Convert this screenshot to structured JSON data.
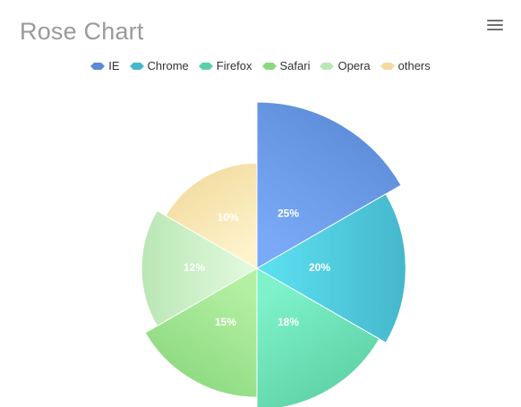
{
  "title": "Rose Chart",
  "toolbar": {
    "menu_icon": "hamburger-menu-icon"
  },
  "chart_data": {
    "type": "pie",
    "variant": "rose",
    "legend_position": "top",
    "categories": [
      "IE",
      "Chrome",
      "Firefox",
      "Safari",
      "Opera",
      "others"
    ],
    "values": [
      25,
      20,
      18,
      15,
      12,
      10
    ],
    "labels": [
      "25%",
      "20%",
      "18%",
      "15%",
      "12%",
      "10%"
    ],
    "colors": {
      "IE": [
        "#5b8bd6",
        "#7aa9f7"
      ],
      "Chrome": [
        "#45b7cc",
        "#5de2f2"
      ],
      "Firefox": [
        "#5dcfa4",
        "#7ef3cb"
      ],
      "Safari": [
        "#8bd87f",
        "#b4f0a2"
      ],
      "Opera": [
        "#b9e6b5",
        "#e4fbdf"
      ],
      "others": [
        "#f2db9d",
        "#fdf3cc"
      ]
    }
  }
}
